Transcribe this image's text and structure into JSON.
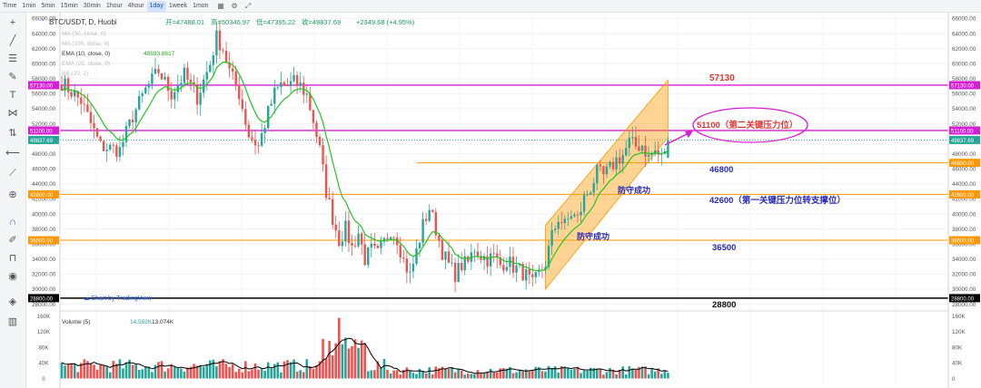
{
  "toolbar": {
    "timeframes": [
      "Time",
      "1min",
      "5min",
      "15min",
      "30min",
      "1hour",
      "4hour",
      "1day",
      "1week",
      "1mon"
    ],
    "active": "1day"
  },
  "left_tools": [
    "crosshair-icon",
    "trend-line-icon",
    "fib-icon",
    "brush-icon",
    "text-icon",
    "pattern-icon",
    "measure-icon",
    "back-arrow-icon",
    "ruler-icon",
    "zoom-icon",
    "magnet-icon",
    "lock-drawing-icon",
    "lock-icon",
    "eye-icon",
    "layers-icon",
    "trash-icon"
  ],
  "header": {
    "symbol": "BTC/USDT, D, Huobi",
    "open": "开=47488.01",
    "high": "高=50346.97",
    "low": "低=47395.22",
    "close": "收=49837.69",
    "change": "+2349.68 (+4.95%)"
  },
  "indicators": [
    {
      "label": "MA (30, close, 0)",
      "value": ""
    },
    {
      "label": "MA (100, close, 0)",
      "value": ""
    },
    {
      "label": "EMA (10, close, 0)",
      "value": "48593.8617"
    },
    {
      "label": "EMA (25, close, 0)",
      "value": ""
    },
    {
      "label": "BB (20, 2)",
      "value": ""
    }
  ],
  "volume_label": "Volume (5)",
  "volume_values": [
    "14.592K",
    "13.074K"
  ],
  "watermark": "Chart by TradingView",
  "annotations": {
    "l57130": "57130",
    "l51100": "51100（第二关键压力位）",
    "l46800": "46800",
    "l42600": "42600（第一关键压力位转支撑位）",
    "l36500": "36500",
    "l28800": "28800",
    "defend1": "防守成功",
    "defend2": "防守成功"
  },
  "colors": {
    "up": "#26a69a",
    "down": "#ef5350",
    "magenta": "#d61dd6",
    "orange": "#ff9800",
    "ema": "#22c522",
    "label_red": "#e53935",
    "label_blue": "#2a2ab8"
  },
  "chart_data": {
    "type": "candlestick",
    "price_axis": {
      "min": 28000,
      "max": 66000,
      "ticks": [
        28000,
        30000,
        32000,
        34000,
        36000,
        38000,
        40000,
        42000,
        44000,
        46000,
        48000,
        50000,
        52000,
        54000,
        56000,
        58000,
        60000,
        62000,
        64000,
        66000
      ]
    },
    "volume_axis": {
      "min": 0,
      "max": 160000,
      "ticks": [
        "0",
        "40K",
        "80K",
        "120K",
        "160K"
      ],
      "tick_values": [
        0,
        40000,
        80000,
        120000,
        160000
      ]
    },
    "horizontal_levels": [
      {
        "price": 57130,
        "label": "57130.00",
        "color": "#d61dd6"
      },
      {
        "price": 51100,
        "label": "51100.00",
        "color": "#d61dd6"
      },
      {
        "price": 49837.69,
        "label": "49837.69",
        "color": "#26a69a"
      },
      {
        "price": 46800,
        "label": "46800.00",
        "color": "#ff9800"
      },
      {
        "price": 42600,
        "label": "42600.00",
        "color": "#ff9800"
      },
      {
        "price": 36500,
        "label": "36500.00",
        "color": "#ff9800"
      },
      {
        "price": 28800,
        "label": "28800.00",
        "color": "#000000"
      }
    ],
    "close_path": [
      [
        0,
        57500
      ],
      [
        6,
        55000
      ],
      [
        12,
        49000
      ],
      [
        18,
        48500
      ],
      [
        22,
        53000
      ],
      [
        26,
        56500
      ],
      [
        30,
        59000
      ],
      [
        34,
        56000
      ],
      [
        38,
        58500
      ],
      [
        42,
        55500
      ],
      [
        46,
        60000
      ],
      [
        48,
        63500
      ],
      [
        50,
        62000
      ],
      [
        52,
        59000
      ],
      [
        55,
        56000
      ],
      [
        58,
        50500
      ],
      [
        61,
        49000
      ],
      [
        64,
        53500
      ],
      [
        66,
        56000
      ],
      [
        68,
        57200
      ],
      [
        70,
        57000
      ],
      [
        72,
        57500
      ],
      [
        74,
        57000
      ],
      [
        76,
        55800
      ],
      [
        78,
        52500
      ],
      [
        80,
        48500
      ],
      [
        82,
        43000
      ],
      [
        84,
        39500
      ],
      [
        86,
        36500
      ],
      [
        88,
        38000
      ],
      [
        90,
        35500
      ],
      [
        92,
        37500
      ],
      [
        94,
        34000
      ],
      [
        96,
        35200
      ],
      [
        98,
        34600
      ],
      [
        100,
        36200
      ],
      [
        102,
        38000
      ],
      [
        104,
        36800
      ],
      [
        106,
        33800
      ],
      [
        108,
        31800
      ],
      [
        110,
        35000
      ],
      [
        112,
        38500
      ],
      [
        114,
        40800
      ],
      [
        116,
        38000
      ],
      [
        118,
        35000
      ],
      [
        120,
        33200
      ],
      [
        122,
        32000
      ],
      [
        124,
        33200
      ],
      [
        126,
        33500
      ],
      [
        128,
        35500
      ],
      [
        130,
        34500
      ],
      [
        132,
        34000
      ],
      [
        134,
        34300
      ],
      [
        136,
        33200
      ],
      [
        138,
        33800
      ],
      [
        140,
        33000
      ],
      [
        142,
        32500
      ],
      [
        144,
        31800
      ],
      [
        146,
        30500
      ],
      [
        148,
        32000
      ],
      [
        150,
        33500
      ],
      [
        152,
        37000
      ],
      [
        154,
        39500
      ],
      [
        156,
        38500
      ],
      [
        158,
        40000
      ],
      [
        160,
        39300
      ],
      [
        162,
        42000
      ],
      [
        164,
        43500
      ],
      [
        166,
        45500
      ],
      [
        168,
        45000
      ],
      [
        170,
        46000
      ],
      [
        172,
        47200
      ],
      [
        174,
        47800
      ],
      [
        176,
        49500
      ],
      [
        178,
        49000
      ],
      [
        180,
        49200
      ],
      [
        182,
        47500
      ],
      [
        184,
        48300
      ],
      [
        186,
        47400
      ],
      [
        188,
        49837.69
      ]
    ],
    "ema10_value": 48593.8617,
    "last_candle": {
      "open": 47488.01,
      "high": 50346.97,
      "low": 47395.22,
      "close": 49837.69,
      "change": 2349.68,
      "change_pct": 4.95
    }
  }
}
